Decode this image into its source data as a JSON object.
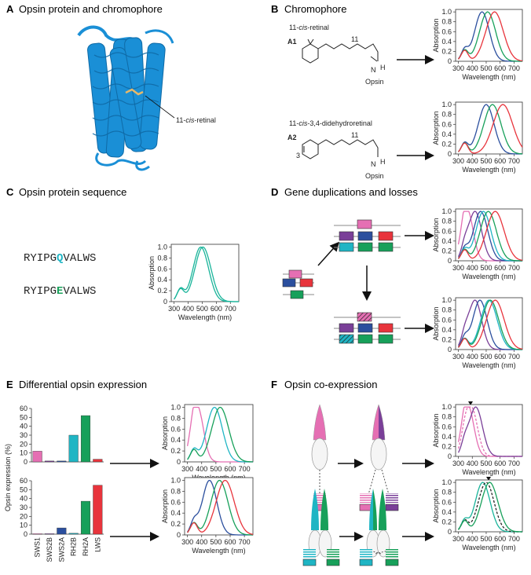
{
  "panels": {
    "A": {
      "letter": "A",
      "title": "Opsin protein and chromophore",
      "label_retinal_pre": "11-",
      "label_retinal_it": "cis",
      "label_retinal_post": "-retinal"
    },
    "B": {
      "letter": "B",
      "title": "Chromophore",
      "a1_name_pre": "11-",
      "a1_name_it": "cis",
      "a1_name_post": "-retinal",
      "a1_tag": "A1",
      "a2_name_pre": "11-",
      "a2_name_it": "cis",
      "a2_name_post": "-3,4-didehydroretinal",
      "a2_tag": "A2",
      "num_11": "11",
      "num_3": "3",
      "n_h": "N",
      "h": "H",
      "opsin": "Opsin"
    },
    "C": {
      "letter": "C",
      "title": "Opsin protein sequence",
      "seq1_pre": "RYIPG",
      "seq1_hl": "Q",
      "seq1_post": "VALWS",
      "seq2_pre": "RYIPG",
      "seq2_hl": "E",
      "seq2_post": "VALWS"
    },
    "D": {
      "letter": "D",
      "title": "Gene duplications and losses"
    },
    "E": {
      "letter": "E",
      "title": "Differential opsin expression",
      "ylabel": "Opsin expression (%)"
    },
    "F": {
      "letter": "F",
      "title": "Opsin co-expression"
    }
  },
  "colors": {
    "SWS1": "#e56fb3",
    "SWS2B": "#7a3f98",
    "SWS2A": "#2b4f9e",
    "RH2B": "#1fb5c4",
    "RH2A": "#17a05a",
    "LWS": "#e8343c",
    "blue_protein": "#1a8fd6",
    "teal": "#19b49a"
  },
  "chart_data": [
    {
      "id": "B1",
      "type": "line",
      "xlabel": "Wavelength (nm)",
      "ylabel": "Absorption",
      "xlim": [
        280,
        760
      ],
      "ylim": [
        0,
        1.05
      ],
      "xticks": [
        300,
        400,
        500,
        600,
        700
      ],
      "yticks": [
        0,
        0.2,
        0.4,
        0.6,
        0.8,
        1.0
      ],
      "series": [
        {
          "peak": 470,
          "color": "#2b4f9e"
        },
        {
          "peak": 510,
          "color": "#17a05a"
        },
        {
          "peak": 560,
          "color": "#e8343c"
        }
      ]
    },
    {
      "id": "B2",
      "type": "line",
      "xlabel": "Wavelength (nm)",
      "ylabel": "Absorption",
      "xlim": [
        280,
        760
      ],
      "ylim": [
        0,
        1.05
      ],
      "xticks": [
        300,
        400,
        500,
        600,
        700
      ],
      "yticks": [
        0,
        0.2,
        0.4,
        0.6,
        0.8,
        1.0
      ],
      "series": [
        {
          "peak": 500,
          "color": "#2b4f9e"
        },
        {
          "peak": 545,
          "color": "#17a05a"
        },
        {
          "peak": 620,
          "color": "#e8343c"
        }
      ]
    },
    {
      "id": "C",
      "type": "line",
      "xlabel": "Wavelength (nm)",
      "ylabel": "Absorption",
      "xlim": [
        280,
        760
      ],
      "ylim": [
        0,
        1.05
      ],
      "xticks": [
        300,
        400,
        500,
        600,
        700
      ],
      "yticks": [
        0,
        0.2,
        0.4,
        0.6,
        0.8,
        1.0
      ],
      "series": [
        {
          "peak": 490,
          "color": "#19b49a"
        },
        {
          "peak": 505,
          "color": "#19b49a"
        }
      ]
    },
    {
      "id": "D1",
      "type": "line",
      "xlabel": "Wavelength (nm)",
      "ylabel": "Absorption",
      "xlim": [
        280,
        760
      ],
      "ylim": [
        0,
        1.05
      ],
      "xticks": [
        300,
        400,
        500,
        600,
        700
      ],
      "yticks": [
        0,
        0.2,
        0.4,
        0.6,
        0.8,
        1.0
      ],
      "series": [
        {
          "peak": 365,
          "color": "#e56fb3"
        },
        {
          "peak": 420,
          "color": "#7a3f98"
        },
        {
          "peak": 460,
          "color": "#2b4f9e"
        },
        {
          "peak": 480,
          "color": "#1fb5c4"
        },
        {
          "peak": 515,
          "color": "#17a05a"
        },
        {
          "peak": 565,
          "color": "#e8343c"
        }
      ]
    },
    {
      "id": "D2",
      "type": "line",
      "xlabel": "Wavelength (nm)",
      "ylabel": "Absorption",
      "xlim": [
        280,
        760
      ],
      "ylim": [
        0,
        1.05
      ],
      "xticks": [
        300,
        400,
        500,
        600,
        700
      ],
      "yticks": [
        0,
        0.2,
        0.4,
        0.6,
        0.8,
        1.0
      ],
      "series": [
        {
          "peak": 420,
          "color": "#7a3f98"
        },
        {
          "peak": 455,
          "color": "#2b4f9e"
        },
        {
          "peak": 520,
          "color": "#1fb5c4"
        },
        {
          "peak": 530,
          "color": "#17a05a"
        },
        {
          "peak": 565,
          "color": "#e8343c"
        }
      ]
    },
    {
      "id": "E_bar1",
      "type": "bar",
      "ylabel": "Opsin expression (%)",
      "ylim": [
        0,
        60
      ],
      "yticks": [
        0,
        10,
        20,
        30,
        40,
        50,
        60
      ],
      "categories": [
        "SWS1",
        "SWS2B",
        "SWS2A",
        "RH2B",
        "RH2A",
        "LWS"
      ],
      "values": [
        12,
        1,
        1,
        30,
        52,
        3
      ]
    },
    {
      "id": "E_bar2",
      "type": "bar",
      "ylabel": "Opsin expression (%)",
      "ylim": [
        0,
        60
      ],
      "yticks": [
        0,
        10,
        20,
        30,
        40,
        50,
        60
      ],
      "categories": [
        "SWS1",
        "SWS2B",
        "SWS2A",
        "RH2B",
        "RH2A",
        "LWS"
      ],
      "values": [
        0.5,
        0.5,
        7,
        1,
        37,
        55
      ]
    },
    {
      "id": "E1",
      "type": "line",
      "xlabel": "Wavelength (nm)",
      "ylabel": "Absorption",
      "xlim": [
        280,
        760
      ],
      "ylim": [
        0,
        1.05
      ],
      "xticks": [
        300,
        400,
        500,
        600,
        700
      ],
      "yticks": [
        0,
        0.2,
        0.4,
        0.6,
        0.8,
        1.0
      ],
      "series": [
        {
          "peak": 370,
          "color": "#e56fb3"
        },
        {
          "peak": 490,
          "color": "#1fb5c4"
        },
        {
          "peak": 530,
          "color": "#17a05a"
        }
      ]
    },
    {
      "id": "E2",
      "type": "line",
      "xlabel": "Wavelength (nm)",
      "ylabel": "Absorption",
      "xlim": [
        280,
        760
      ],
      "ylim": [
        0,
        1.05
      ],
      "xticks": [
        300,
        400,
        500,
        600,
        700
      ],
      "yticks": [
        0,
        0.2,
        0.4,
        0.6,
        0.8,
        1.0
      ],
      "series": [
        {
          "peak": 455,
          "color": "#2b4f9e"
        },
        {
          "peak": 525,
          "color": "#17a05a"
        },
        {
          "peak": 565,
          "color": "#e8343c"
        }
      ]
    },
    {
      "id": "F1",
      "type": "line",
      "xlabel": "Wavelength (nm)",
      "ylabel": "Absorption",
      "xlim": [
        280,
        760
      ],
      "ylim": [
        0,
        1.05
      ],
      "xticks": [
        300,
        400,
        500,
        600,
        700
      ],
      "yticks": [
        0,
        0.2,
        0.4,
        0.6,
        0.8,
        1.0
      ],
      "series": [
        {
          "peak": 370,
          "color": "#e56fb3"
        },
        {
          "peak": 392,
          "color": "#e56fb3",
          "dashed": true
        },
        {
          "peak": 425,
          "color": "#7a3f98"
        }
      ]
    },
    {
      "id": "F2",
      "type": "line",
      "xlabel": "Wavelength (nm)",
      "ylabel": "Absorption",
      "xlim": [
        280,
        760
      ],
      "ylim": [
        0,
        1.05
      ],
      "xticks": [
        300,
        400,
        500,
        600,
        700
      ],
      "yticks": [
        0,
        0.2,
        0.4,
        0.6,
        0.8,
        1.0
      ],
      "series": [
        {
          "peak": 475,
          "color": "#19b49a"
        },
        {
          "peak": 500,
          "color": "#222222",
          "dashed": true
        },
        {
          "peak": 525,
          "color": "#17a05a"
        }
      ]
    }
  ]
}
